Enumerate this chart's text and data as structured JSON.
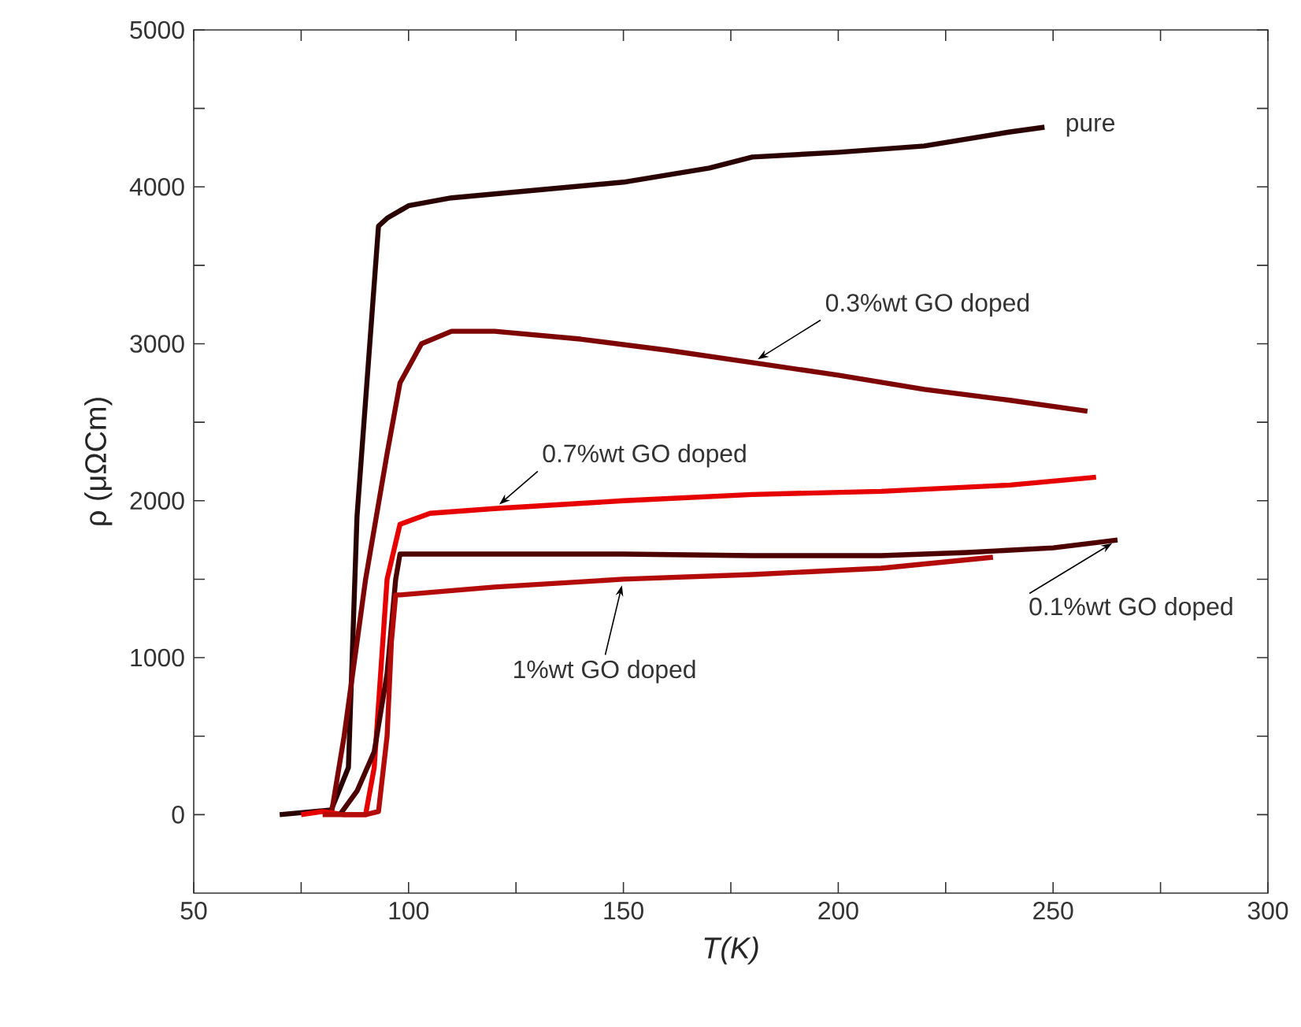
{
  "chart_data": {
    "type": "line",
    "xlabel": "T(K)",
    "ylabel": "ρ (μΩCm)",
    "xlim": [
      50,
      300
    ],
    "ylim": [
      -500,
      5000
    ],
    "xticks": [
      50,
      {
        "value": 75,
        "label": null
      },
      100,
      {
        "value": 125,
        "label": null
      },
      150,
      {
        "value": 175,
        "label": null
      },
      200,
      {
        "value": 225,
        "label": null
      },
      250,
      {
        "value": 275,
        "label": null
      },
      300
    ],
    "yticks": [
      0,
      {
        "value": 500,
        "label": null
      },
      1000,
      {
        "value": 1500,
        "label": null
      },
      2000,
      {
        "value": 2500,
        "label": null
      },
      3000,
      {
        "value": 3500,
        "label": null
      },
      4000,
      {
        "value": 4500,
        "label": null
      },
      5000
    ],
    "grid": false,
    "line_style": "solid",
    "series": [
      {
        "name": "pure",
        "color": "#2b0202",
        "x": [
          70,
          82,
          86,
          88,
          93,
          95,
          100,
          110,
          130,
          150,
          170,
          180,
          200,
          220,
          240,
          248
        ],
        "values": [
          0,
          30,
          300,
          1900,
          3750,
          3800,
          3880,
          3930,
          3980,
          4030,
          4120,
          4190,
          4220,
          4260,
          4350,
          4380
        ]
      },
      {
        "name": "0.3%wt GO doped",
        "color": "#7d0505",
        "x": [
          82,
          85,
          90,
          95,
          98,
          103,
          110,
          120,
          140,
          160,
          180,
          200,
          220,
          240,
          258
        ],
        "values": [
          0,
          500,
          1500,
          2300,
          2750,
          3000,
          3080,
          3080,
          3030,
          2960,
          2880,
          2800,
          2710,
          2640,
          2570
        ]
      },
      {
        "name": "0.7%wt GO doped",
        "color": "#e60000",
        "x": [
          75,
          80,
          85,
          90,
          92,
          95,
          98,
          105,
          120,
          150,
          180,
          210,
          240,
          260
        ],
        "values": [
          0,
          20,
          0,
          0,
          300,
          1500,
          1850,
          1920,
          1950,
          2000,
          2040,
          2060,
          2100,
          2150
        ]
      },
      {
        "name": "0.1%wt GO doped",
        "color": "#4d0000",
        "x": [
          84,
          88,
          92,
          95,
          97,
          98,
          120,
          150,
          180,
          210,
          230,
          250,
          265
        ],
        "values": [
          0,
          150,
          400,
          900,
          1500,
          1660,
          1660,
          1660,
          1650,
          1650,
          1670,
          1700,
          1750
        ]
      },
      {
        "name": "1%wt GO doped",
        "color": "#b30a0a",
        "x": [
          80,
          90,
          93,
          95,
          96,
          97,
          98,
          120,
          150,
          180,
          210,
          236
        ],
        "values": [
          0,
          0,
          20,
          500,
          1100,
          1400,
          1400,
          1450,
          1500,
          1530,
          1570,
          1640
        ]
      }
    ]
  }
}
